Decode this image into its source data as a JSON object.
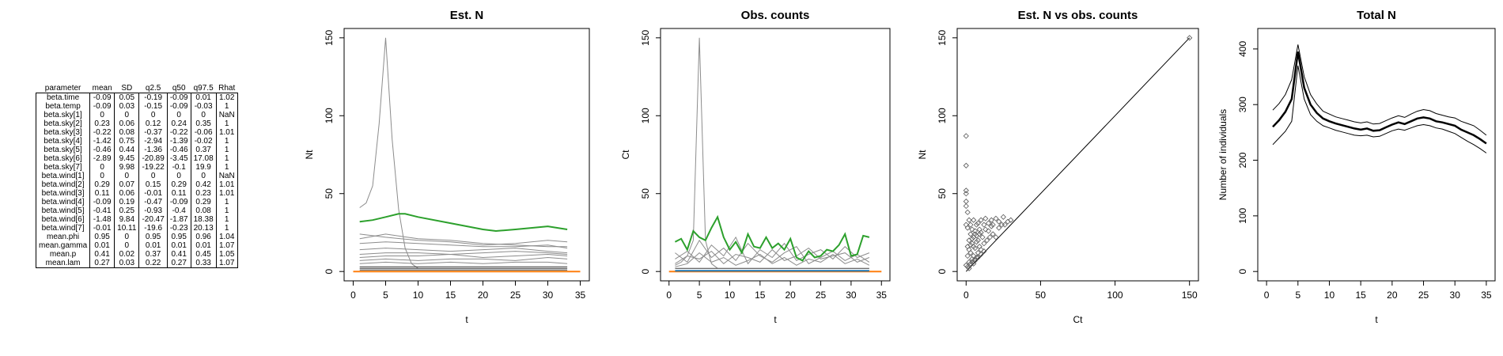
{
  "table": {
    "headers": [
      "parameter",
      "mean",
      "SD",
      "q2.5",
      "q50",
      "q97.5",
      "Rhat"
    ],
    "rows": [
      [
        "beta.time",
        "-0.09",
        "0.05",
        "-0.19",
        "-0.09",
        "0.01",
        "1.02"
      ],
      [
        "beta.temp",
        "-0.09",
        "0.03",
        "-0.15",
        "-0.09",
        "-0.03",
        "1"
      ],
      [
        "beta.sky[1]",
        "0",
        "0",
        "0",
        "0",
        "0",
        "NaN"
      ],
      [
        "beta.sky[2]",
        "0.23",
        "0.06",
        "0.12",
        "0.24",
        "0.35",
        "1"
      ],
      [
        "beta.sky[3]",
        "-0.22",
        "0.08",
        "-0.37",
        "-0.22",
        "-0.06",
        "1.01"
      ],
      [
        "beta.sky[4]",
        "-1.42",
        "0.75",
        "-2.94",
        "-1.39",
        "-0.02",
        "1"
      ],
      [
        "beta.sky[5]",
        "-0.46",
        "0.44",
        "-1.36",
        "-0.46",
        "0.37",
        "1"
      ],
      [
        "beta.sky[6]",
        "-2.89",
        "9.45",
        "-20.89",
        "-3.45",
        "17.08",
        "1"
      ],
      [
        "beta.sky[7]",
        "0",
        "9.98",
        "-19.22",
        "-0.1",
        "19.9",
        "1"
      ],
      [
        "beta.wind[1]",
        "0",
        "0",
        "0",
        "0",
        "0",
        "NaN"
      ],
      [
        "beta.wind[2]",
        "0.29",
        "0.07",
        "0.15",
        "0.29",
        "0.42",
        "1.01"
      ],
      [
        "beta.wind[3]",
        "0.11",
        "0.06",
        "-0.01",
        "0.11",
        "0.23",
        "1.01"
      ],
      [
        "beta.wind[4]",
        "-0.09",
        "0.19",
        "-0.47",
        "-0.09",
        "0.29",
        "1"
      ],
      [
        "beta.wind[5]",
        "-0.41",
        "0.25",
        "-0.93",
        "-0.4",
        "0.08",
        "1"
      ],
      [
        "beta.wind[6]",
        "-1.48",
        "9.84",
        "-20.47",
        "-1.87",
        "18.38",
        "1"
      ],
      [
        "beta.wind[7]",
        "-0.01",
        "10.11",
        "-19.6",
        "-0.23",
        "20.13",
        "1"
      ],
      [
        "mean.phi",
        "0.95",
        "0",
        "0.95",
        "0.95",
        "0.96",
        "1.04"
      ],
      [
        "mean.gamma",
        "0.01",
        "0",
        "0.01",
        "0.01",
        "0.01",
        "1.07"
      ],
      [
        "mean.p",
        "0.41",
        "0.02",
        "0.37",
        "0.41",
        "0.45",
        "1.05"
      ],
      [
        "mean.lam",
        "0.27",
        "0.03",
        "0.22",
        "0.27",
        "0.33",
        "1.07"
      ]
    ]
  },
  "colors": {
    "grey": "#8c8c8c",
    "dark": "#3a3a3a",
    "green": "#2ca02c",
    "orange": "#ff7f0e",
    "blue": "#1f77b4"
  },
  "chart_data": [
    {
      "type": "line",
      "title": "Est. N",
      "xlabel": "t",
      "ylabel": "Nt",
      "xlim": [
        0,
        35
      ],
      "ylim": [
        0,
        150
      ],
      "xticks": [
        0,
        5,
        10,
        15,
        20,
        25,
        30,
        35
      ],
      "yticks": [
        0,
        50,
        100,
        150
      ],
      "series": [
        {
          "color": "grey",
          "x": [
            1,
            2,
            3,
            4,
            5,
            6,
            7,
            8,
            9,
            10
          ],
          "y": [
            41,
            44,
            55,
            95,
            150,
            85,
            40,
            15,
            5,
            2
          ]
        },
        {
          "color": "grey",
          "x": [
            1,
            5,
            10,
            15,
            20,
            25,
            30,
            33
          ],
          "y": [
            24,
            22,
            20,
            19,
            17,
            18,
            20,
            19
          ]
        },
        {
          "color": "grey",
          "x": [
            1,
            5,
            10,
            15,
            20,
            25,
            30,
            33
          ],
          "y": [
            21,
            24,
            21,
            20,
            18,
            17,
            16,
            16
          ]
        },
        {
          "color": "grey",
          "x": [
            1,
            5,
            10,
            15,
            20,
            25,
            30,
            33
          ],
          "y": [
            18,
            19,
            18,
            17,
            16,
            16,
            17,
            15
          ]
        },
        {
          "color": "grey",
          "x": [
            1,
            5,
            10,
            15,
            20,
            25,
            30,
            33
          ],
          "y": [
            14,
            15,
            14,
            13,
            14,
            15,
            13,
            12
          ]
        },
        {
          "color": "grey",
          "x": [
            1,
            5,
            10,
            15,
            20,
            25,
            30,
            33
          ],
          "y": [
            11,
            12,
            12,
            11,
            12,
            13,
            12,
            11
          ]
        },
        {
          "color": "grey",
          "x": [
            1,
            5,
            10,
            15,
            20,
            25,
            30,
            33
          ],
          "y": [
            9,
            10,
            10,
            11,
            9,
            10,
            11,
            10
          ]
        },
        {
          "color": "grey",
          "x": [
            1,
            5,
            10,
            15,
            20,
            25,
            30,
            33
          ],
          "y": [
            7,
            8,
            7,
            8,
            8,
            7,
            9,
            8
          ]
        },
        {
          "color": "grey",
          "x": [
            1,
            5,
            10,
            15,
            20,
            25,
            30,
            33
          ],
          "y": [
            5,
            6,
            5,
            6,
            5,
            6,
            6,
            5
          ]
        },
        {
          "color": "dark",
          "x": [
            1,
            33
          ],
          "y": [
            3,
            3
          ]
        },
        {
          "color": "dark",
          "x": [
            1,
            33
          ],
          "y": [
            2,
            2
          ]
        },
        {
          "color": "dark",
          "x": [
            1,
            33
          ],
          "y": [
            1,
            1
          ]
        },
        {
          "color": "green",
          "x": [
            1,
            3,
            5,
            7,
            8,
            10,
            15,
            20,
            22,
            25,
            30,
            33
          ],
          "y": [
            32,
            33,
            35,
            37,
            37,
            35,
            31,
            27,
            26,
            27,
            29,
            27
          ]
        },
        {
          "color": "orange",
          "x": [
            0,
            35
          ],
          "y": [
            0,
            0
          ]
        }
      ]
    },
    {
      "type": "line",
      "title": "Obs. counts",
      "xlabel": "t",
      "ylabel": "Ct",
      "xlim": [
        0,
        35
      ],
      "ylim": [
        0,
        150
      ],
      "xticks": [
        0,
        5,
        10,
        15,
        20,
        25,
        30,
        35
      ],
      "yticks": [
        0,
        50,
        100,
        150
      ],
      "series": [
        {
          "color": "grey",
          "x": [
            1,
            2,
            3,
            4,
            5,
            6,
            7,
            8
          ],
          "y": [
            4,
            6,
            10,
            20,
            150,
            20,
            5,
            2
          ]
        },
        {
          "color": "grey",
          "x": [
            1,
            3,
            5,
            7,
            9,
            11,
            13,
            15,
            17,
            19,
            21,
            23,
            25,
            27,
            29,
            31,
            33
          ],
          "y": [
            8,
            13,
            6,
            17,
            10,
            22,
            5,
            14,
            9,
            18,
            7,
            11,
            14,
            8,
            16,
            9,
            12
          ]
        },
        {
          "color": "grey",
          "x": [
            1,
            3,
            5,
            7,
            9,
            11,
            13,
            15,
            17,
            19,
            21,
            23,
            25,
            27,
            29,
            31,
            33
          ],
          "y": [
            12,
            6,
            20,
            9,
            15,
            7,
            18,
            10,
            6,
            12,
            16,
            5,
            9,
            13,
            7,
            11,
            6
          ]
        },
        {
          "color": "grey",
          "x": [
            1,
            3,
            5,
            7,
            9,
            11,
            13,
            15,
            17,
            19,
            21,
            23,
            25,
            27,
            29,
            31,
            33
          ],
          "y": [
            5,
            10,
            8,
            13,
            5,
            11,
            9,
            6,
            14,
            7,
            10,
            15,
            8,
            10,
            12,
            6,
            9
          ]
        },
        {
          "color": "grey",
          "x": [
            1,
            3,
            5,
            7,
            9,
            11,
            13,
            15,
            17,
            19,
            21,
            23,
            25,
            27,
            29,
            31,
            33
          ],
          "y": [
            3,
            5,
            12,
            6,
            9,
            4,
            7,
            11,
            5,
            9,
            4,
            8,
            6,
            11,
            5,
            8,
            4
          ]
        },
        {
          "color": "dark",
          "x": [
            1,
            33
          ],
          "y": [
            2,
            2
          ]
        },
        {
          "color": "green",
          "x": [
            1,
            2,
            3,
            4,
            5,
            6,
            7,
            8,
            9,
            10,
            11,
            12,
            13,
            14,
            15,
            16,
            17,
            18,
            19,
            20,
            21,
            22,
            23,
            24,
            25,
            26,
            27,
            28,
            29,
            30,
            31,
            32,
            33
          ],
          "y": [
            19,
            21,
            14,
            26,
            22,
            20,
            28,
            35,
            22,
            14,
            19,
            12,
            24,
            16,
            15,
            22,
            15,
            18,
            14,
            21,
            9,
            7,
            13,
            9,
            10,
            14,
            13,
            17,
            24,
            10,
            11,
            23,
            22
          ]
        },
        {
          "color": "orange",
          "x": [
            0,
            35
          ],
          "y": [
            0,
            0
          ]
        },
        {
          "color": "blue",
          "x": [
            1,
            33
          ],
          "y": [
            0.5,
            0.5
          ]
        }
      ]
    },
    {
      "type": "scatter",
      "title": "Est. N vs obs. counts",
      "xlabel": "Ct",
      "ylabel": "Nt",
      "xlim": [
        0,
        150
      ],
      "ylim": [
        0,
        150
      ],
      "xticks": [
        0,
        50,
        100,
        150
      ],
      "yticks": [
        0,
        50,
        100,
        150
      ],
      "diagonal": true,
      "points": [
        [
          0,
          87
        ],
        [
          0,
          68
        ],
        [
          0,
          52
        ],
        [
          0,
          50
        ],
        [
          0,
          45
        ],
        [
          0,
          42
        ],
        [
          0,
          30
        ],
        [
          1,
          28
        ],
        [
          1,
          38
        ],
        [
          2,
          33
        ],
        [
          3,
          30
        ],
        [
          4,
          27
        ],
        [
          5,
          33
        ],
        [
          6,
          26
        ],
        [
          7,
          30
        ],
        [
          8,
          31
        ],
        [
          9,
          27
        ],
        [
          10,
          33
        ],
        [
          12,
          30
        ],
        [
          13,
          34
        ],
        [
          15,
          31
        ],
        [
          17,
          33
        ],
        [
          18,
          30
        ],
        [
          20,
          34
        ],
        [
          22,
          32
        ],
        [
          25,
          35
        ],
        [
          2,
          20
        ],
        [
          3,
          24
        ],
        [
          4,
          18
        ],
        [
          5,
          22
        ],
        [
          6,
          15
        ],
        [
          7,
          19
        ],
        [
          8,
          12
        ],
        [
          9,
          16
        ],
        [
          10,
          14
        ],
        [
          12,
          18
        ],
        [
          14,
          20
        ],
        [
          16,
          22
        ],
        [
          18,
          24
        ],
        [
          20,
          22
        ],
        [
          22,
          28
        ],
        [
          24,
          30
        ],
        [
          26,
          30
        ],
        [
          28,
          32
        ],
        [
          30,
          33
        ],
        [
          1,
          10
        ],
        [
          2,
          6
        ],
        [
          3,
          12
        ],
        [
          4,
          8
        ],
        [
          5,
          10
        ],
        [
          6,
          7
        ],
        [
          7,
          9
        ],
        [
          0,
          4
        ],
        [
          1,
          3
        ],
        [
          2,
          2
        ],
        [
          3,
          5
        ],
        [
          4,
          6
        ],
        [
          5,
          5
        ],
        [
          6,
          8
        ],
        [
          8,
          9
        ],
        [
          10,
          11
        ],
        [
          12,
          13
        ],
        [
          1,
          16
        ],
        [
          2,
          14
        ],
        [
          3,
          17
        ],
        [
          4,
          21
        ],
        [
          5,
          16
        ],
        [
          6,
          24
        ],
        [
          7,
          23
        ],
        [
          8,
          20
        ],
        [
          9,
          24
        ],
        [
          10,
          25
        ],
        [
          11,
          22
        ],
        [
          13,
          27
        ],
        [
          15,
          26
        ],
        [
          17,
          29
        ],
        [
          150,
          150
        ]
      ]
    },
    {
      "type": "line",
      "title": "Total N",
      "xlabel": "t",
      "ylabel": "Number of individuals",
      "xlim": [
        0,
        35
      ],
      "ylim": [
        0,
        420
      ],
      "xticks": [
        0,
        5,
        10,
        15,
        20,
        25,
        30,
        35
      ],
      "yticks": [
        0,
        100,
        200,
        300,
        400
      ],
      "x": [
        1,
        2,
        3,
        4,
        5,
        6,
        7,
        8,
        9,
        10,
        11,
        12,
        13,
        14,
        15,
        16,
        17,
        18,
        19,
        20,
        21,
        22,
        23,
        24,
        25,
        26,
        27,
        28,
        29,
        30,
        31,
        32,
        33,
        34,
        35
      ],
      "median": [
        260,
        272,
        287,
        310,
        395,
        330,
        300,
        285,
        275,
        270,
        266,
        263,
        260,
        257,
        255,
        257,
        253,
        254,
        259,
        264,
        268,
        265,
        270,
        275,
        277,
        275,
        270,
        268,
        265,
        262,
        255,
        250,
        245,
        238,
        230
      ],
      "lower": [
        228,
        240,
        252,
        270,
        370,
        310,
        282,
        270,
        262,
        258,
        254,
        251,
        248,
        245,
        244,
        245,
        242,
        243,
        248,
        253,
        256,
        254,
        258,
        262,
        264,
        262,
        258,
        256,
        252,
        248,
        241,
        234,
        228,
        221,
        213
      ],
      "upper": [
        290,
        302,
        318,
        345,
        408,
        350,
        318,
        301,
        288,
        283,
        278,
        275,
        272,
        269,
        267,
        269,
        265,
        266,
        271,
        276,
        280,
        277,
        283,
        288,
        291,
        289,
        284,
        281,
        278,
        276,
        270,
        266,
        262,
        254,
        245
      ]
    }
  ]
}
